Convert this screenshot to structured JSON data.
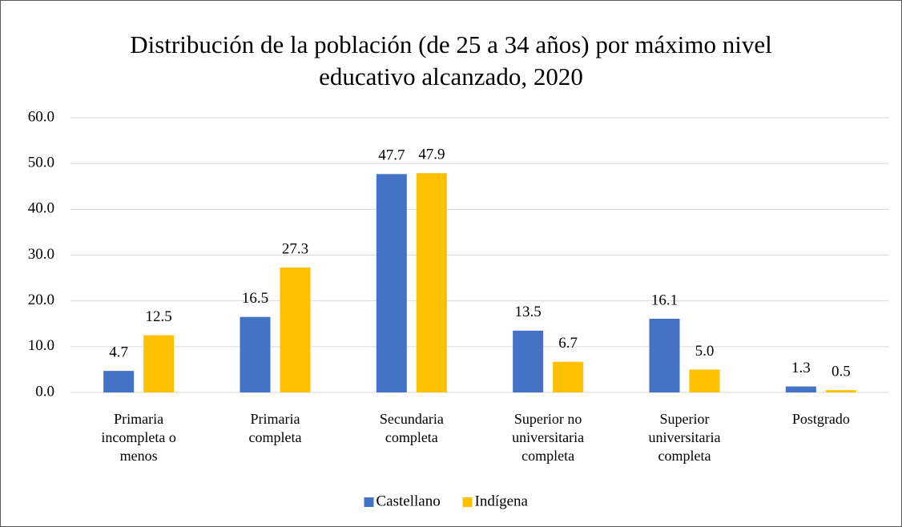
{
  "chart_data": {
    "type": "bar",
    "title": "Distribución de la población (de 25 a 34 años) por máximo nivel educativo alcanzado, 2020",
    "categories": [
      "Primaria incompleta o menos",
      "Primaria completa",
      "Secundaria completa",
      "Superior no universitaria completa",
      "Superior universitaria completa",
      "Postgrado"
    ],
    "series": [
      {
        "name": "Castellano",
        "color": "#4472c4",
        "values": [
          4.7,
          16.5,
          47.7,
          13.5,
          16.1,
          1.3
        ],
        "value_labels": [
          "4.7",
          "16.5",
          "47.7",
          "13.5",
          "16.1",
          "1.3"
        ]
      },
      {
        "name": "Indígena",
        "color": "#ffc000",
        "values": [
          12.5,
          27.3,
          47.9,
          6.7,
          5.0,
          0.5
        ],
        "value_labels": [
          "12.5",
          "27.3",
          "47.9",
          "6.7",
          "5.0",
          "0.5"
        ]
      }
    ],
    "ylim": [
      0,
      60
    ],
    "yticks": [
      {
        "value": 0,
        "label": "0.0"
      },
      {
        "value": 10,
        "label": "10.0"
      },
      {
        "value": 20,
        "label": "20.0"
      },
      {
        "value": 30,
        "label": "30.0"
      },
      {
        "value": 40,
        "label": "40.0"
      },
      {
        "value": 50,
        "label": "50.0"
      },
      {
        "value": 60,
        "label": "60.0"
      }
    ],
    "grid": true,
    "legend": "bottom"
  }
}
